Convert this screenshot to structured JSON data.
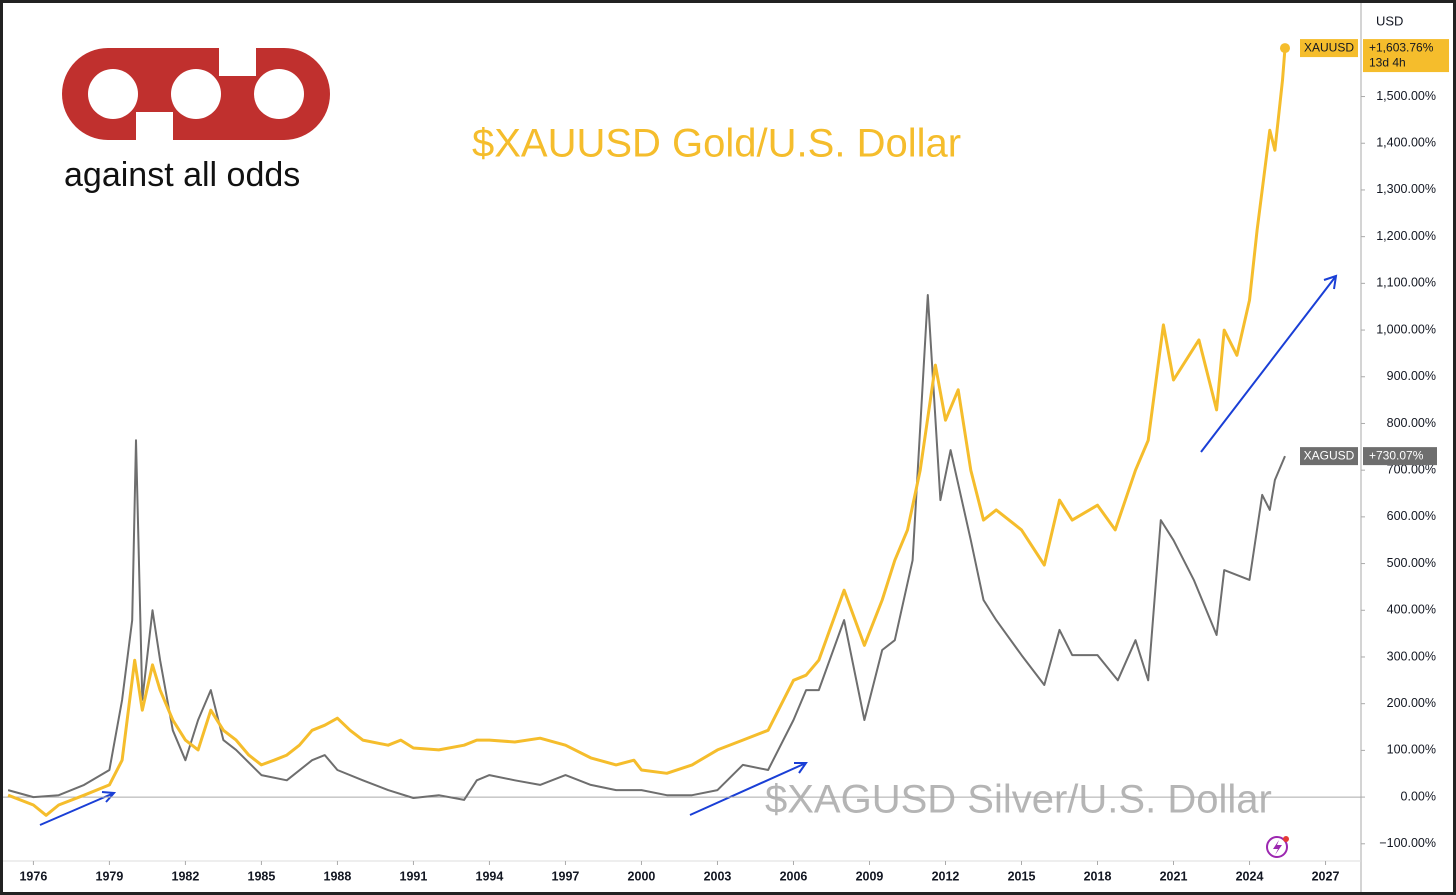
{
  "logo": {
    "text": "against all odds"
  },
  "chart_data": {
    "type": "line",
    "title": "$XAUUSD Gold/U.S. Dollar",
    "subtitle": "$XAGUSD Silver/U.S. Dollar",
    "y_axis_label": "USD",
    "xlim": [
      1974.8,
      2028.4
    ],
    "xticks": [
      1976,
      1979,
      1982,
      1985,
      1988,
      1991,
      1994,
      1997,
      2000,
      2003,
      2006,
      2009,
      2012,
      2015,
      2018,
      2021,
      2024,
      2027
    ],
    "ylim": [
      -139,
      1696
    ],
    "yticks": [
      {
        "value": -100,
        "label": "−100.00%"
      },
      {
        "value": 0,
        "label": "0.00%"
      },
      {
        "value": 100,
        "label": "100.00%"
      },
      {
        "value": 200,
        "label": "200.00%"
      },
      {
        "value": 300,
        "label": "300.00%"
      },
      {
        "value": 400,
        "label": "400.00%"
      },
      {
        "value": 500,
        "label": "500.00%"
      },
      {
        "value": 600,
        "label": "600.00%"
      },
      {
        "value": 700,
        "label": "700.00%"
      },
      {
        "value": 800,
        "label": "800.00%"
      },
      {
        "value": 900,
        "label": "900.00%"
      },
      {
        "value": 1000,
        "label": "1,000.00%"
      },
      {
        "value": 1100,
        "label": "1,100.00%"
      },
      {
        "value": 1200,
        "label": "1,200.00%"
      },
      {
        "value": 1300,
        "label": "1,300.00%"
      },
      {
        "value": 1400,
        "label": "1,400.00%"
      },
      {
        "value": 1500,
        "label": "1,500.00%"
      }
    ],
    "series": [
      {
        "name": "XAUUSD",
        "color": "#f5bd2c",
        "end_label": "+1,603.76%",
        "countdown": "13d 4h",
        "x": [
          1975,
          1976,
          1976.5,
          1977,
          1978,
          1979,
          1979.5,
          1980,
          1980.3,
          1980.7,
          1981,
          1981.5,
          1982,
          1982.5,
          1983,
          1983.5,
          1984,
          1984.5,
          1985,
          1985.5,
          1986,
          1986.5,
          1987,
          1987.5,
          1988,
          1988.5,
          1989,
          1990,
          1990.5,
          1991,
          1992,
          1993,
          1993.5,
          1994,
          1995,
          1996,
          1997,
          1998,
          1999,
          1999.7,
          2000,
          2001,
          2002,
          2003,
          2004,
          2005,
          2006,
          2006.5,
          2007,
          2008,
          2008.8,
          2009.5,
          2010,
          2010.5,
          2011,
          2011.6,
          2012,
          2012.5,
          2013,
          2013.5,
          2014,
          2015,
          2015.9,
          2016.5,
          2017,
          2018,
          2018.7,
          2019.5,
          2020,
          2020.6,
          2021,
          2022,
          2022.7,
          2023,
          2023.5,
          2024,
          2024.3,
          2024.8,
          2025,
          2025.3,
          2025.4
        ],
        "values": [
          4,
          -17,
          -39,
          -17,
          4,
          26,
          79,
          293,
          186,
          283,
          229,
          165,
          122,
          101,
          186,
          143,
          122,
          90,
          69,
          79,
          90,
          111,
          143,
          154,
          169,
          143,
          122,
          111,
          122,
          105,
          101,
          111,
          122,
          122,
          118,
          126,
          111,
          84,
          69,
          79,
          58,
          51,
          69,
          101,
          122,
          143,
          250,
          261,
          293,
          443,
          325,
          422,
          507,
          572,
          700,
          925,
          807,
          872,
          700,
          593,
          615,
          572,
          497,
          636,
          593,
          625,
          572,
          700,
          764,
          1011,
          893,
          979,
          829,
          1000,
          946,
          1064,
          1214,
          1428,
          1385,
          1535,
          1603.76
        ]
      },
      {
        "name": "XAGUSD",
        "color": "#6e6e6e",
        "end_label": "+730.07%",
        "x": [
          1975,
          1976,
          1977,
          1978,
          1979,
          1979.5,
          1979.9,
          1980.05,
          1980.3,
          1980.7,
          1981,
          1981.5,
          1982,
          1982.5,
          1983,
          1983.5,
          1984,
          1985,
          1986,
          1987,
          1987.5,
          1988,
          1989,
          1990,
          1991,
          1992,
          1993,
          1993.5,
          1994,
          1995,
          1996,
          1997,
          1998,
          1999,
          2000,
          2001,
          2002,
          2003,
          2004,
          2005,
          2006,
          2006.5,
          2007,
          2008,
          2008.8,
          2009.5,
          2010,
          2010.7,
          2011.3,
          2011.8,
          2012.2,
          2013,
          2013.5,
          2014,
          2015,
          2015.9,
          2016.5,
          2017,
          2018,
          2018.8,
          2019.5,
          2020,
          2020.5,
          2021,
          2021.8,
          2022.7,
          2023,
          2024,
          2024.5,
          2024.8,
          2025,
          2025.4
        ],
        "values": [
          15,
          0,
          4,
          26,
          58,
          208,
          379,
          764,
          208,
          400,
          293,
          143,
          79,
          165,
          229,
          122,
          101,
          47,
          36,
          79,
          90,
          58,
          36,
          15,
          -2,
          4,
          -6,
          36,
          47,
          36,
          26,
          47,
          26,
          15,
          15,
          4,
          4,
          15,
          69,
          58,
          165,
          229,
          229,
          379,
          165,
          315,
          336,
          507,
          1075,
          636,
          743,
          550,
          422,
          379,
          304,
          240,
          358,
          304,
          304,
          250,
          336,
          250,
          593,
          550,
          465,
          347,
          486,
          465,
          647,
          615,
          679,
          730.07
        ]
      }
    ]
  }
}
